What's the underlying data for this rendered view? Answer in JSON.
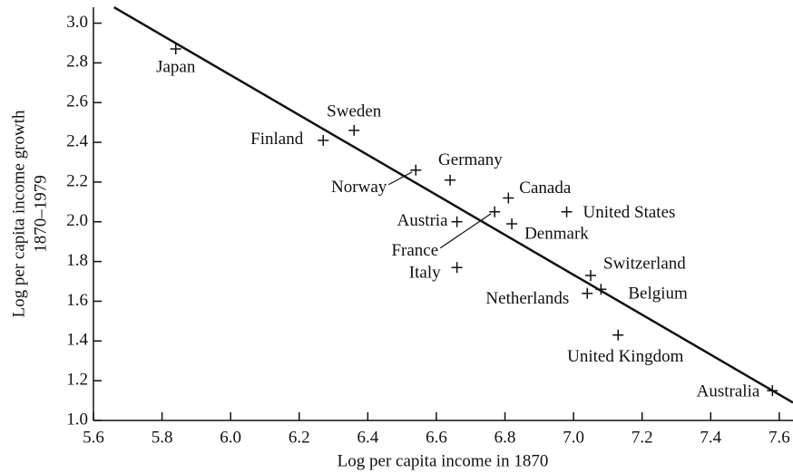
{
  "chart_data": {
    "type": "scatter",
    "xlabel": "Log per capita income in 1870",
    "ylabel": [
      "Log per capita income growth",
      "1870–1979"
    ],
    "xlim": [
      5.6,
      7.64
    ],
    "ylim": [
      1.0,
      3.08
    ],
    "xticks": [
      5.6,
      5.8,
      {
        "value": 6.0,
        "label": "6.0"
      },
      6.2,
      6.4,
      6.6,
      6.8,
      {
        "value": 7.0,
        "label": "7.0"
      },
      7.2,
      7.4,
      7.6
    ],
    "yticks": [
      {
        "value": 1.0,
        "label": "1.0"
      },
      1.2,
      1.4,
      1.6,
      1.8,
      {
        "value": 2.0,
        "label": "2.0"
      },
      2.2,
      2.4,
      2.6,
      2.8,
      {
        "value": 3.0,
        "label": "3.0"
      }
    ],
    "series": [
      {
        "color": "#111111",
        "point_labels": [
          "Japan",
          "Sweden",
          "Finland",
          "Norway",
          "Germany",
          "Canada",
          "Austria",
          "France",
          "Denmark",
          "United States",
          "Italy",
          "Switzerland",
          "Belgium",
          "Netherlands",
          "United Kingdom",
          "Australia"
        ],
        "x": [
          5.84,
          6.36,
          6.27,
          6.54,
          6.64,
          6.81,
          6.66,
          6.77,
          6.82,
          6.98,
          6.66,
          7.05,
          7.08,
          7.04,
          7.13,
          7.58
        ],
        "values": [
          2.87,
          2.46,
          2.41,
          2.26,
          2.21,
          2.12,
          2.0,
          2.05,
          1.99,
          2.05,
          1.77,
          1.73,
          1.66,
          1.64,
          1.43,
          1.15
        ]
      }
    ],
    "fit_line": {
      "x": [
        5.66,
        7.64
      ],
      "values": [
        3.08,
        1.09
      ]
    }
  }
}
